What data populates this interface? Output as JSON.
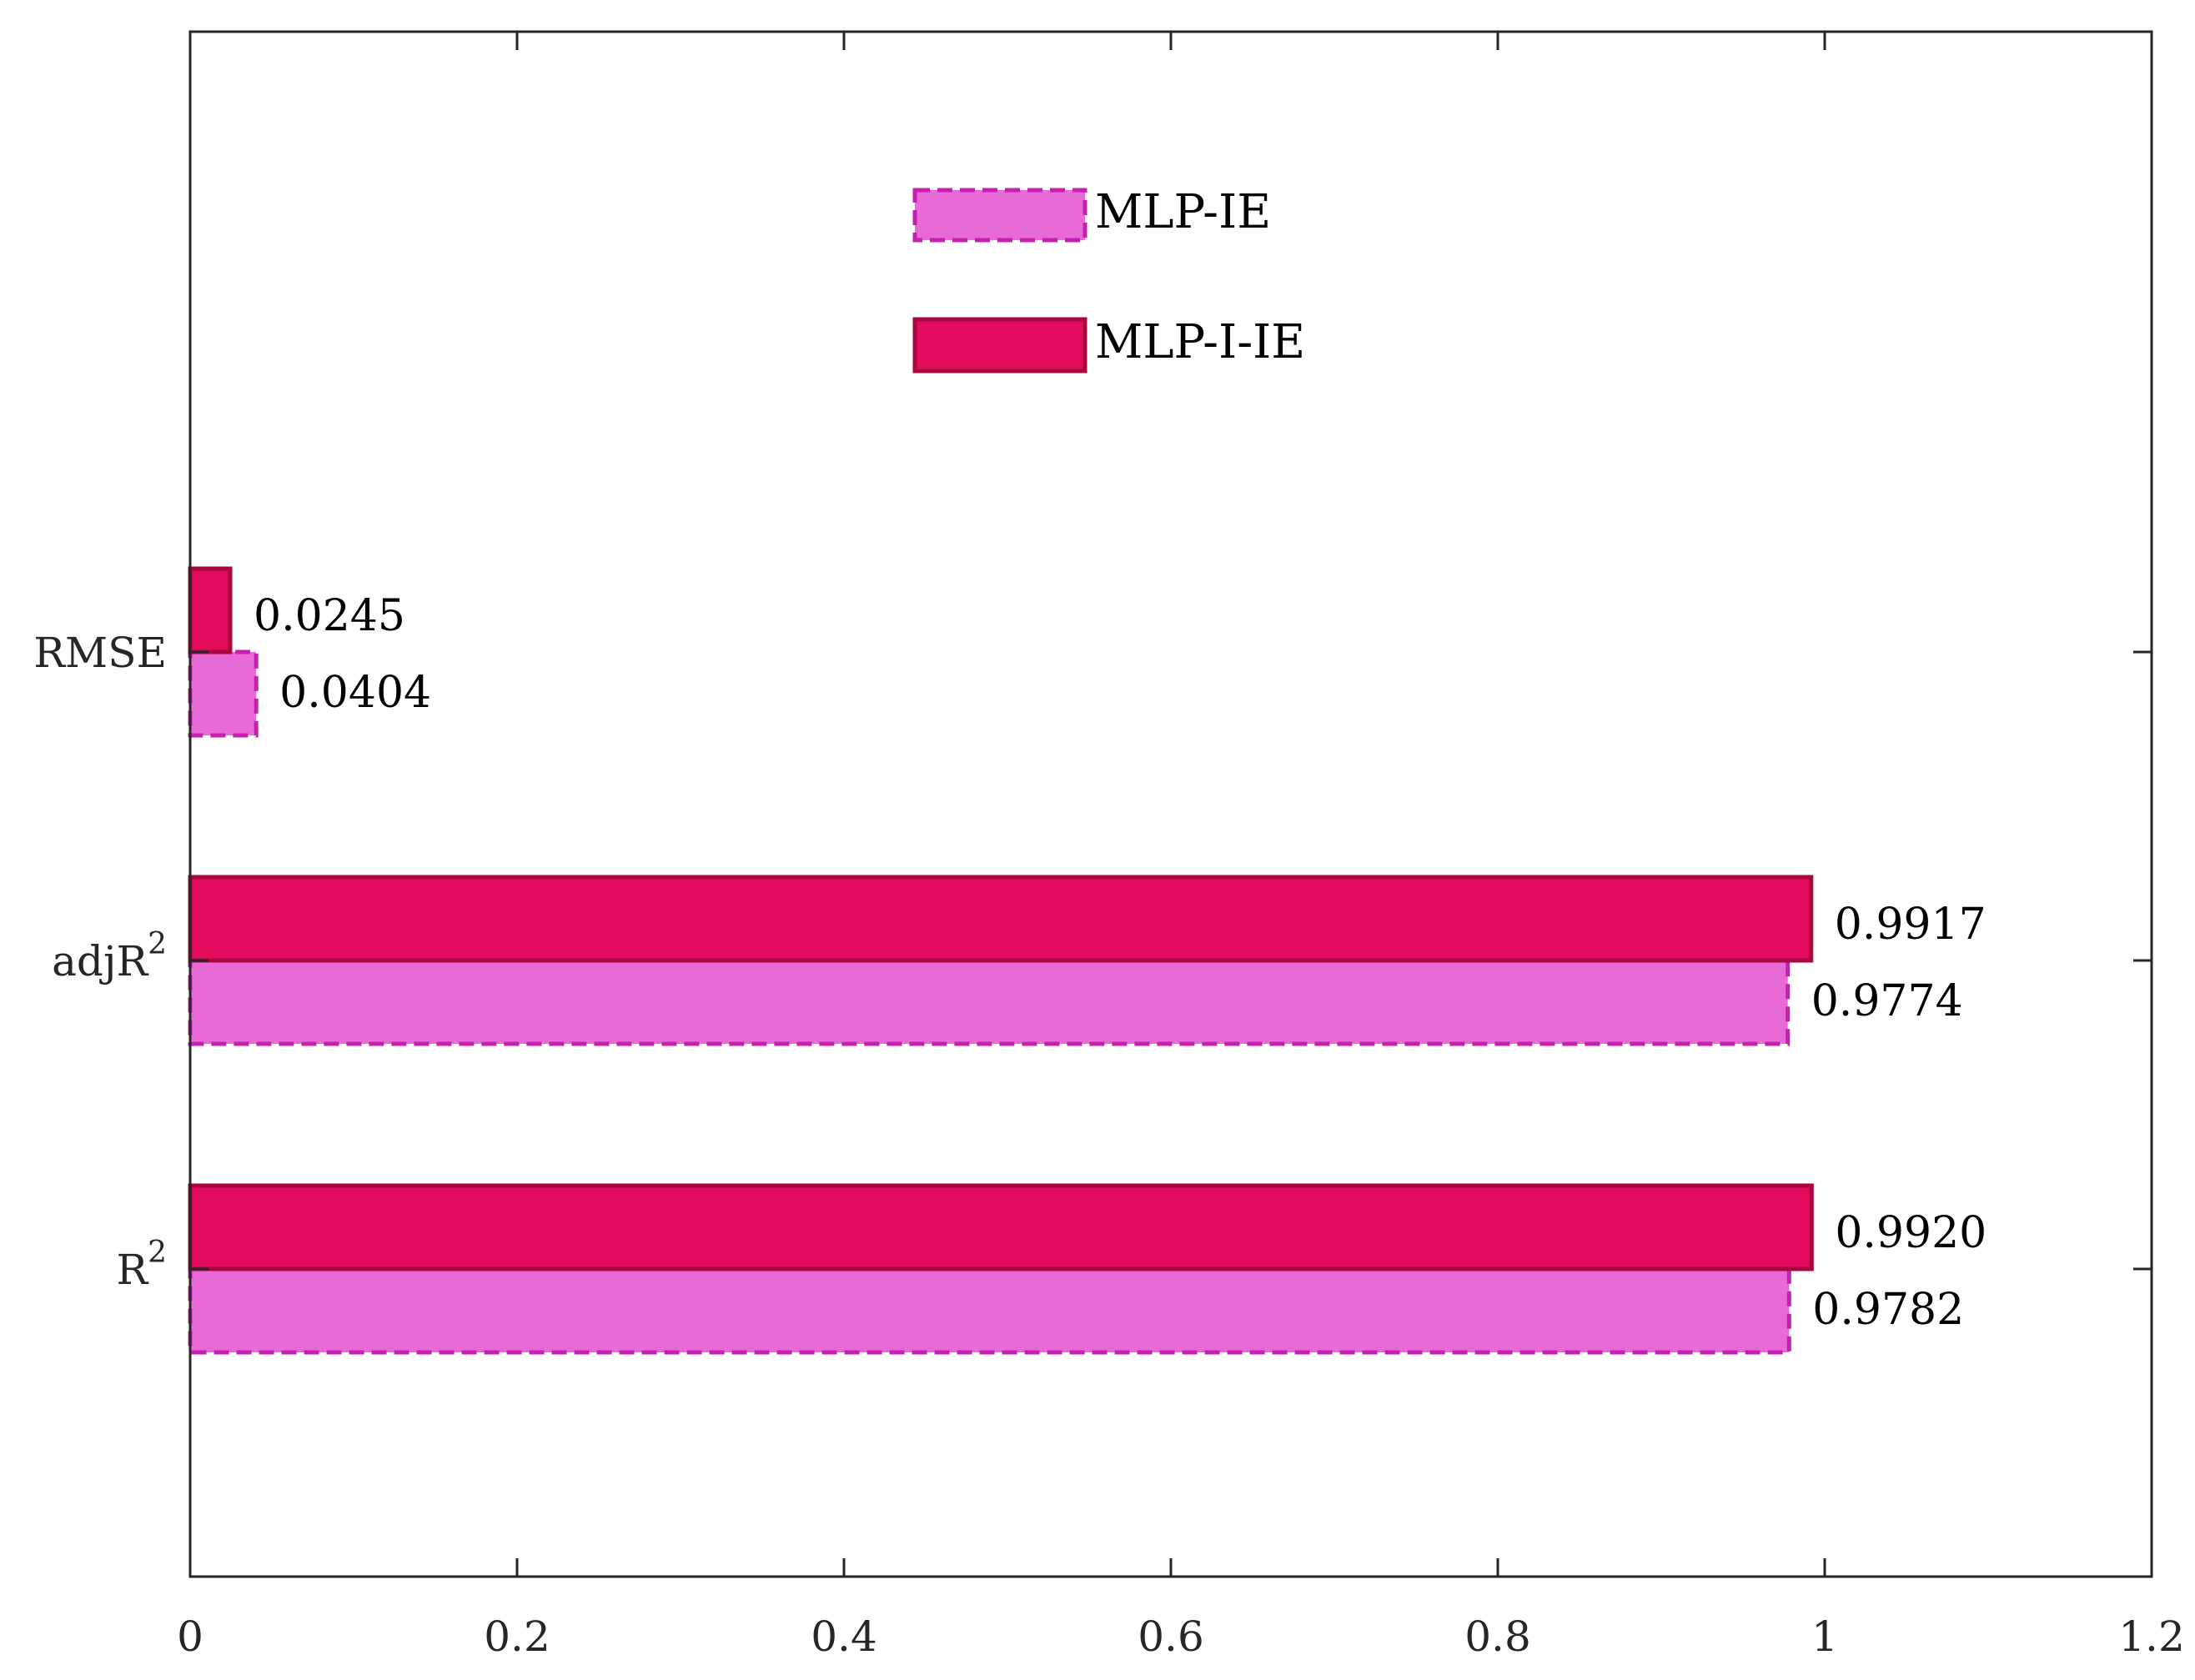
{
  "chart_data": {
    "type": "bar",
    "orientation": "horizontal",
    "categories": [
      "R",
      "adjR",
      "RMSE"
    ],
    "category_superscripts": [
      "2",
      "2",
      ""
    ],
    "series": [
      {
        "name": "MLP-IE",
        "values": [
          0.9782,
          0.9774,
          0.0404
        ],
        "labels": [
          "0.9782",
          "0.9774",
          "0.0404"
        ],
        "color": "#e86ad6",
        "edge_color": "#c81fb0",
        "edge_style": "dashed"
      },
      {
        "name": "MLP-I-IE",
        "values": [
          0.992,
          0.9917,
          0.0245
        ],
        "labels": [
          "0.9920",
          "0.9917",
          "0.0245"
        ],
        "color": "#e30b5c",
        "edge_color": "#a8073f",
        "edge_style": "solid"
      }
    ],
    "xlim": [
      0,
      1.2
    ],
    "xticks": [
      0,
      0.2,
      0.4,
      0.6,
      0.8,
      1,
      1.2
    ],
    "xtick_labels": [
      "0",
      "0.2",
      "0.4",
      "0.6",
      "0.8",
      "1",
      "1.2"
    ],
    "grid": false,
    "legend": "top-center",
    "title": "",
    "xlabel": "",
    "ylabel": ""
  }
}
